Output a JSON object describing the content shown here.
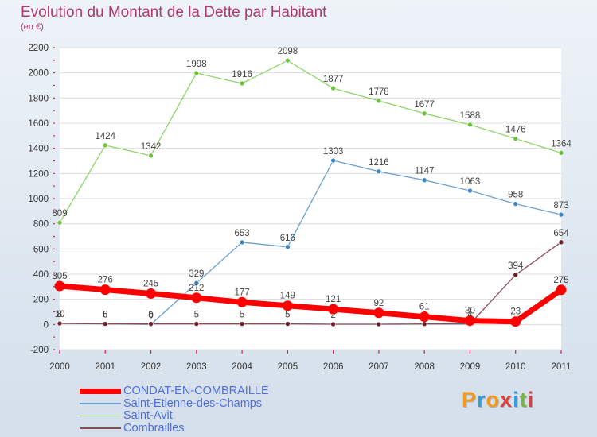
{
  "title": "Evolution du Montant de la Dette par Habitant",
  "subtitle": "(en €)",
  "logo_text": "Proxiti",
  "logo_colors": [
    "#f39a1d",
    "#3a9bd9",
    "#f39a1d",
    "#e23c3c",
    "#3a9bd9",
    "#77b63f",
    "#e23c3c"
  ],
  "chart_data": {
    "type": "line",
    "title": "Evolution du Montant de la Dette par Habitant",
    "subtitle": "(en €)",
    "xlabel": "",
    "ylabel": "",
    "x": [
      "2000",
      "2001",
      "2002",
      "2003",
      "2004",
      "2005",
      "2006",
      "2007",
      "2008",
      "2009",
      "2010",
      "2011"
    ],
    "ylim": [
      -200,
      2200
    ],
    "yticks": [
      "-200",
      "0",
      "200",
      "400",
      "600",
      "800",
      "1000",
      "1200",
      "1400",
      "1600",
      "1800",
      "2000",
      "2200"
    ],
    "grid": "horizontal",
    "legend_position": "bottom-left",
    "series": [
      {
        "name": "Saint-Avit",
        "color": "#8fd46a",
        "point_color": "#6cc43c",
        "values": [
          809,
          1424,
          1342,
          1998,
          1916,
          2098,
          1877,
          1778,
          1677,
          1588,
          1476,
          1364
        ],
        "labels": [
          "809",
          "1424",
          "1342",
          "1998",
          "1916",
          "2098",
          "1877",
          "1778",
          "1677",
          "1588",
          "1476",
          "1364"
        ]
      },
      {
        "name": "Saint-Etienne-des-Champs",
        "color": "#6a9fd0",
        "point_color": "#3f86c6",
        "values": [
          10,
          6,
          0,
          329,
          653,
          616,
          1303,
          1216,
          1147,
          1063,
          958,
          873
        ],
        "labels": [
          "10",
          "6",
          "0",
          "329",
          "653",
          "616",
          "1303",
          "1216",
          "1147",
          "1063",
          "958",
          "873"
        ]
      },
      {
        "name": "Combrailles",
        "color": "#8a4a56",
        "point_color": "#6e1f2c",
        "values": [
          8,
          5,
          5,
          5,
          5,
          5,
          2,
          2,
          4,
          4,
          394,
          654
        ],
        "labels": [
          "8",
          "5",
          "5",
          "5",
          "5",
          "5",
          "2",
          "2",
          "4",
          "4",
          "394",
          "654"
        ]
      },
      {
        "name": "CONDAT-EN-COMBRAILLE",
        "color": "#ff0000",
        "point_color": "#ff0000",
        "values": [
          305,
          276,
          245,
          212,
          177,
          149,
          121,
          92,
          61,
          30,
          23,
          275
        ],
        "labels": [
          "305",
          "276",
          "245",
          "212",
          "177",
          "149",
          "121",
          "92",
          "61",
          "30",
          "23",
          "275"
        ]
      }
    ],
    "legend": [
      "CONDAT-EN-COMBRAILLE",
      "Saint-Etienne-des-Champs",
      "Saint-Avit",
      "Combrailles"
    ]
  }
}
